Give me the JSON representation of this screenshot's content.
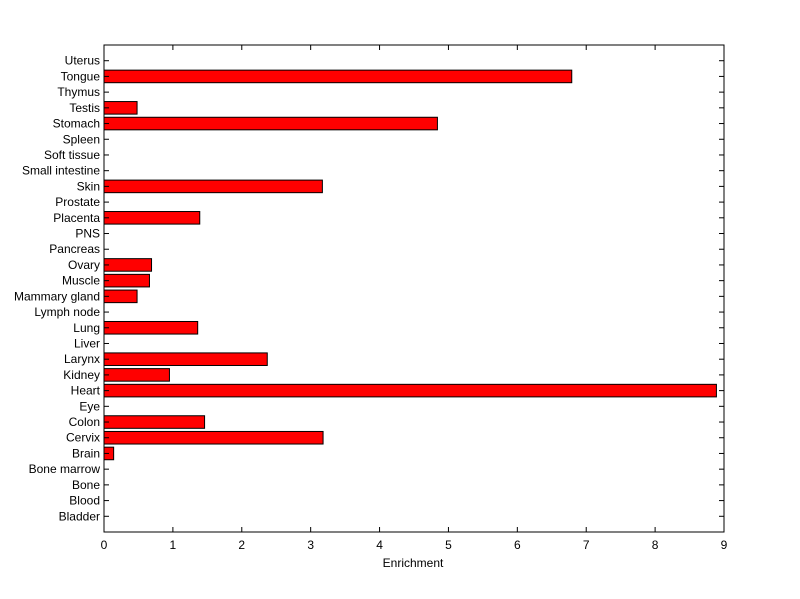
{
  "chart_data": {
    "type": "bar",
    "orientation": "horizontal",
    "categories": [
      "Bladder",
      "Blood",
      "Bone",
      "Bone marrow",
      "Brain",
      "Cervix",
      "Colon",
      "Eye",
      "Heart",
      "Kidney",
      "Larynx",
      "Liver",
      "Lung",
      "Lymph node",
      "Mammary gland",
      "Muscle",
      "Ovary",
      "Pancreas",
      "PNS",
      "Placenta",
      "Prostate",
      "Skin",
      "Small intestine",
      "Soft tissue",
      "Spleen",
      "Stomach",
      "Testis",
      "Thymus",
      "Tongue",
      "Uterus"
    ],
    "values": [
      0,
      0,
      0,
      0,
      0.14,
      3.18,
      1.46,
      0,
      8.89,
      0.95,
      2.37,
      0,
      1.36,
      0,
      0.48,
      0.66,
      0.69,
      0,
      0,
      1.39,
      0,
      3.17,
      0,
      0,
      0,
      4.84,
      0.48,
      0,
      6.79,
      0
    ],
    "xlabel": "Enrichment",
    "ylabel": "",
    "title": "",
    "xlim": [
      0,
      9
    ],
    "xticks": [
      "0",
      "1",
      "2",
      "3",
      "4",
      "5",
      "6",
      "7",
      "8",
      "9"
    ],
    "grid": false,
    "bar_color": "#ff0000"
  }
}
